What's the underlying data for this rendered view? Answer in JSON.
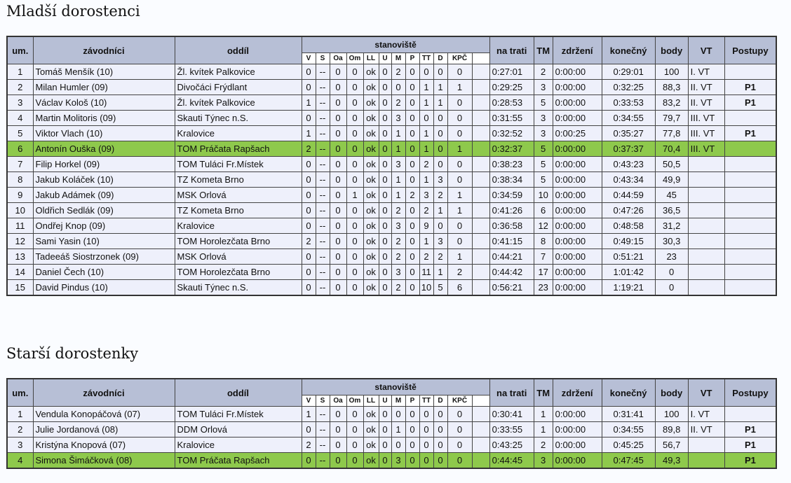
{
  "tables": [
    {
      "title": "Mladší dorostenci",
      "columns": {
        "um": "um.",
        "name": "závodníci",
        "club": "oddíl",
        "group": "stanoviště",
        "st": [
          "V",
          "S",
          "Oa",
          "Om",
          "LL",
          "U",
          "M",
          "P",
          "TT",
          "D",
          "KPČ"
        ],
        "trat": "na trati",
        "tm": "TM",
        "zdr": "zdržení",
        "kon": "konečný",
        "body": "body",
        "vt": "VT",
        "post": "Postupy"
      },
      "rows": [
        {
          "um": "1",
          "name": "Tomáš Menšík (10)",
          "club": "Žl. kvítek Palkovice",
          "st": [
            "0",
            "--",
            "0",
            "0",
            "ok",
            "0",
            "2",
            "0",
            "0",
            "0",
            "0"
          ],
          "trat": "0:27:01",
          "tm": "2",
          "zdr": "0:00:00",
          "kon": "0:29:01",
          "body": "100",
          "vt": "I. VT"
        },
        {
          "um": "2",
          "name": "Milan Humler (09)",
          "club": "Divočáci Frýdlant",
          "st": [
            "0",
            "--",
            "0",
            "0",
            "ok",
            "0",
            "0",
            "0",
            "1",
            "1",
            "1"
          ],
          "trat": "0:29:25",
          "tm": "3",
          "zdr": "0:00:00",
          "kon": "0:32:25",
          "body": "88,3",
          "vt": "II. VT",
          "post": "P1"
        },
        {
          "um": "3",
          "name": "Václav Kološ (10)",
          "club": "Žl. kvítek Palkovice",
          "st": [
            "1",
            "--",
            "0",
            "0",
            "ok",
            "0",
            "2",
            "0",
            "1",
            "1",
            "0"
          ],
          "trat": "0:28:53",
          "tm": "5",
          "zdr": "0:00:00",
          "kon": "0:33:53",
          "body": "83,2",
          "vt": "II. VT",
          "post": "P1"
        },
        {
          "um": "4",
          "name": "Martin Molitoris (09)",
          "club": "Skauti Týnec n.S.",
          "st": [
            "0",
            "--",
            "0",
            "0",
            "ok",
            "0",
            "3",
            "0",
            "0",
            "0",
            "0"
          ],
          "trat": "0:31:55",
          "tm": "3",
          "zdr": "0:00:00",
          "kon": "0:34:55",
          "body": "79,7",
          "vt": "III. VT"
        },
        {
          "um": "5",
          "name": "Viktor Vlach (10)",
          "club": "Kralovice",
          "st": [
            "1",
            "--",
            "0",
            "0",
            "ok",
            "0",
            "1",
            "0",
            "1",
            "0",
            "0"
          ],
          "trat": "0:32:52",
          "tm": "3",
          "zdr": "0:00:25",
          "kon": "0:35:27",
          "body": "77,8",
          "vt": "III. VT",
          "post": "P1"
        },
        {
          "um": "6",
          "name": "Antonín Ouška (09)",
          "club": "TOM Práčata Rapšach",
          "st": [
            "2",
            "--",
            "0",
            "0",
            "ok",
            "0",
            "1",
            "0",
            "1",
            "0",
            "1"
          ],
          "trat": "0:32:37",
          "tm": "5",
          "zdr": "0:00:00",
          "kon": "0:37:37",
          "body": "70,4",
          "vt": "III. VT",
          "highlight": true
        },
        {
          "um": "7",
          "name": "Filip Horkel (09)",
          "club": "TOM Tuláci Fr.Místek",
          "st": [
            "0",
            "--",
            "0",
            "0",
            "ok",
            "0",
            "3",
            "0",
            "2",
            "0",
            "0"
          ],
          "trat": "0:38:23",
          "tm": "5",
          "zdr": "0:00:00",
          "kon": "0:43:23",
          "body": "50,5"
        },
        {
          "um": "8",
          "name": "Jakub Koláček (10)",
          "club": "TZ Kometa Brno",
          "st": [
            "0",
            "--",
            "0",
            "0",
            "ok",
            "0",
            "1",
            "0",
            "1",
            "3",
            "0"
          ],
          "trat": "0:38:34",
          "tm": "5",
          "zdr": "0:00:00",
          "kon": "0:43:34",
          "body": "49,9"
        },
        {
          "um": "9",
          "name": "Jakub Adámek (09)",
          "club": "MSK Orlová",
          "st": [
            "0",
            "--",
            "0",
            "1",
            "ok",
            "0",
            "1",
            "2",
            "3",
            "2",
            "1"
          ],
          "trat": "0:34:59",
          "tm": "10",
          "zdr": "0:00:00",
          "kon": "0:44:59",
          "body": "45"
        },
        {
          "um": "10",
          "name": "Oldřich Sedlák (09)",
          "club": "TZ Kometa Brno",
          "st": [
            "0",
            "--",
            "0",
            "0",
            "ok",
            "0",
            "2",
            "0",
            "2",
            "1",
            "1"
          ],
          "trat": "0:41:26",
          "tm": "6",
          "zdr": "0:00:00",
          "kon": "0:47:26",
          "body": "36,5"
        },
        {
          "um": "11",
          "name": "Ondřej Knop (09)",
          "club": "Kralovice",
          "st": [
            "0",
            "--",
            "0",
            "0",
            "ok",
            "0",
            "3",
            "0",
            "9",
            "0",
            "0"
          ],
          "trat": "0:36:58",
          "tm": "12",
          "zdr": "0:00:00",
          "kon": "0:48:58",
          "body": "31,2"
        },
        {
          "um": "12",
          "name": "Sami Yasin (10)",
          "club": "TOM Horolezčata Brno",
          "st": [
            "2",
            "--",
            "0",
            "0",
            "ok",
            "0",
            "2",
            "0",
            "1",
            "3",
            "0"
          ],
          "trat": "0:41:15",
          "tm": "8",
          "zdr": "0:00:00",
          "kon": "0:49:15",
          "body": "30,3"
        },
        {
          "um": "13",
          "name": "Tadeeáš Siostrzonek (09)",
          "club": "MSK Orlová",
          "st": [
            "0",
            "--",
            "0",
            "0",
            "ok",
            "0",
            "2",
            "0",
            "2",
            "2",
            "1"
          ],
          "trat": "0:44:21",
          "tm": "7",
          "zdr": "0:00:00",
          "kon": "0:51:21",
          "body": "23"
        },
        {
          "um": "14",
          "name": "Daniel Čech (10)",
          "club": "TOM Horolezčata Brno",
          "st": [
            "0",
            "--",
            "0",
            "0",
            "ok",
            "0",
            "3",
            "0",
            "11",
            "1",
            "2"
          ],
          "trat": "0:44:42",
          "tm": "17",
          "zdr": "0:00:00",
          "kon": "1:01:42",
          "body": "0"
        },
        {
          "um": "15",
          "name": "David Pindus (10)",
          "club": "Skauti Týnec n.S.",
          "st": [
            "0",
            "--",
            "0",
            "0",
            "ok",
            "0",
            "2",
            "0",
            "10",
            "5",
            "6"
          ],
          "trat": "0:56:21",
          "tm": "23",
          "zdr": "0:00:00",
          "kon": "1:19:21",
          "body": "0"
        }
      ]
    },
    {
      "title": "Starší dorostenky",
      "columns": {
        "um": "um.",
        "name": "závodníci",
        "club": "oddíl",
        "group": "stanoviště",
        "st": [
          "V",
          "S",
          "Oa",
          "Om",
          "LL",
          "U",
          "M",
          "P",
          "TT",
          "D",
          "KPČ"
        ],
        "trat": "na trati",
        "tm": "TM",
        "zdr": "zdržení",
        "kon": "konečný",
        "body": "body",
        "vt": "VT",
        "post": "Postupy"
      },
      "rows": [
        {
          "um": "1",
          "name": "Vendula Konopáčová (07)",
          "club": "TOM Tuláci Fr.Místek",
          "st": [
            "1",
            "--",
            "0",
            "0",
            "ok",
            "0",
            "0",
            "0",
            "0",
            "0",
            "0"
          ],
          "trat": "0:30:41",
          "tm": "1",
          "zdr": "0:00:00",
          "kon": "0:31:41",
          "body": "100",
          "vt": "I. VT"
        },
        {
          "um": "2",
          "name": "Julie Jordanová (08)",
          "club": "DDM Orlová",
          "st": [
            "0",
            "--",
            "0",
            "0",
            "ok",
            "0",
            "1",
            "0",
            "0",
            "0",
            "0"
          ],
          "trat": "0:33:55",
          "tm": "1",
          "zdr": "0:00:00",
          "kon": "0:34:55",
          "body": "89,8",
          "vt": "II. VT",
          "post": "P1"
        },
        {
          "um": "3",
          "name": "Kristýna Knopová (07)",
          "club": "Kralovice",
          "st": [
            "2",
            "--",
            "0",
            "0",
            "ok",
            "0",
            "0",
            "0",
            "0",
            "0",
            "0"
          ],
          "trat": "0:43:25",
          "tm": "2",
          "zdr": "0:00:00",
          "kon": "0:45:25",
          "body": "56,7",
          "post": "P1"
        },
        {
          "um": "4",
          "name": "Simona Šimáčková (08)",
          "club": "TOM Práčata Rapšach",
          "st": [
            "0",
            "--",
            "0",
            "0",
            "ok",
            "0",
            "3",
            "0",
            "0",
            "0",
            "0"
          ],
          "trat": "0:44:45",
          "tm": "3",
          "zdr": "0:00:00",
          "kon": "0:47:45",
          "body": "49,3",
          "post": "P1",
          "highlight": true
        }
      ]
    }
  ]
}
